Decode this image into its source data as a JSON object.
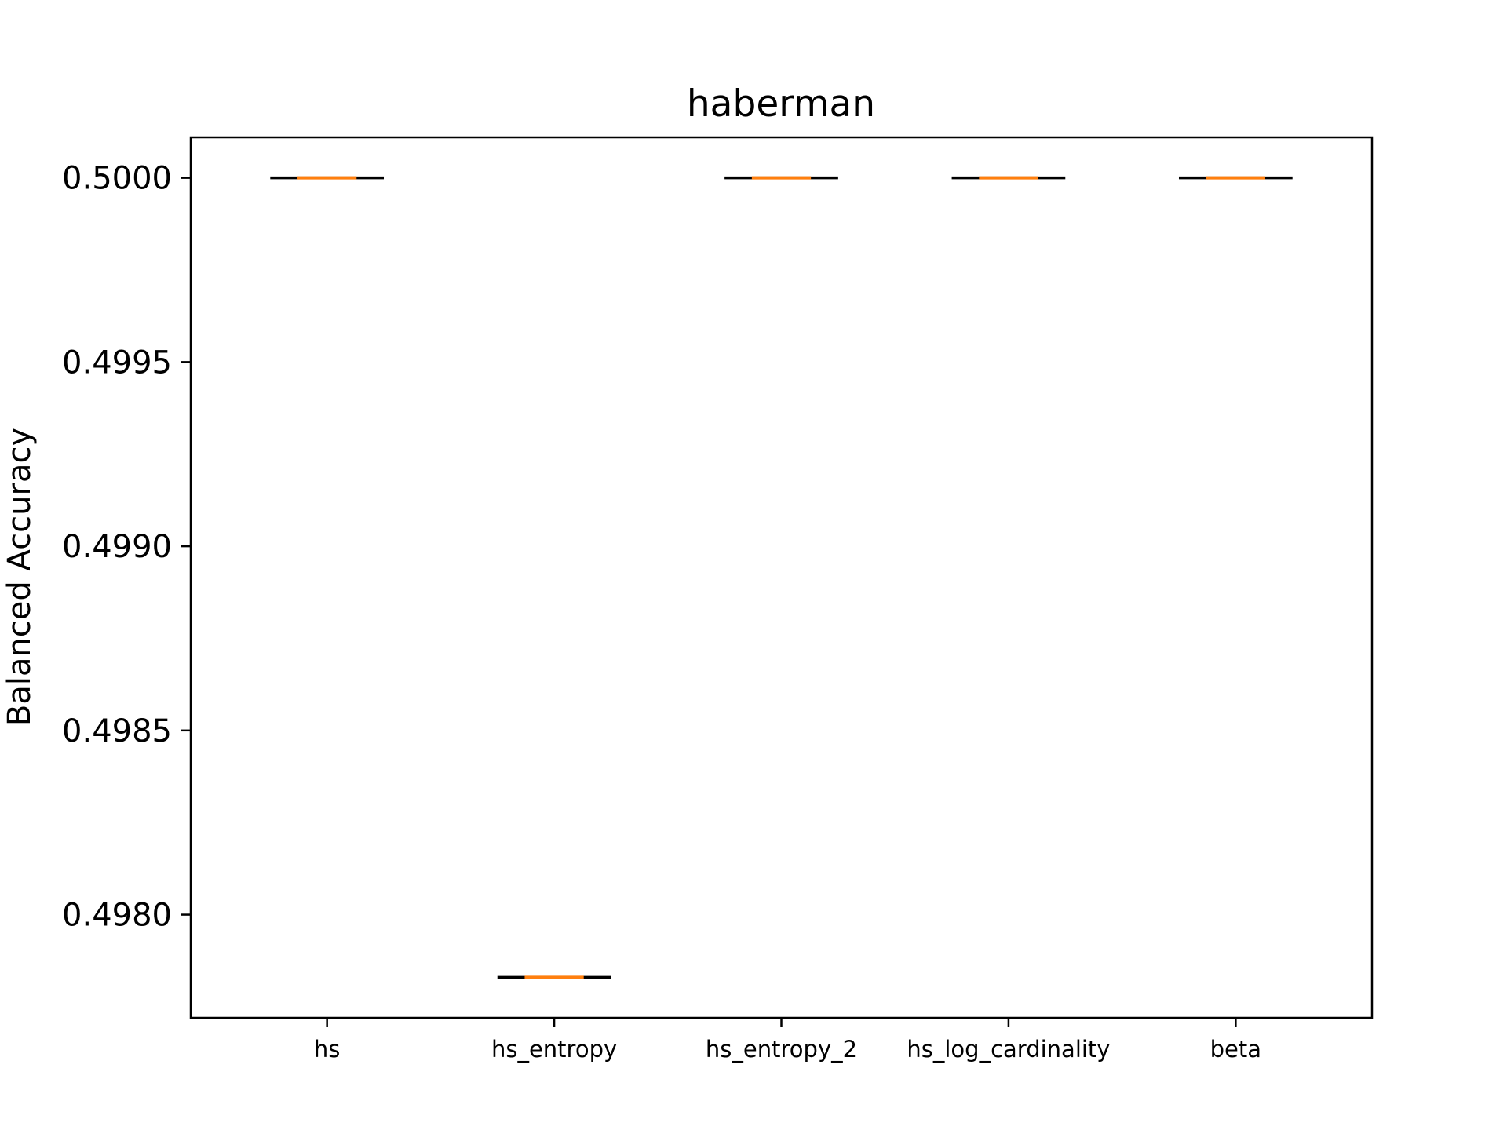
{
  "chart_data": {
    "type": "box",
    "title": "haberman",
    "xlabel": "",
    "ylabel": "Balanced Accuracy",
    "categories": [
      "hs",
      "hs_entropy",
      "hs_entropy_2",
      "hs_log_cardinality",
      "beta"
    ],
    "values": [
      0.5,
      0.49783,
      0.5,
      0.5,
      0.5
    ],
    "ylim": [
      0.49772,
      0.50011
    ],
    "yticks": [
      "0.4980",
      "0.4985",
      "0.4990",
      "0.4995",
      "0.5000"
    ],
    "grid": false,
    "colors": {
      "median": "#ff7f0e",
      "whisker": "#000000",
      "frame": "#000000"
    }
  }
}
